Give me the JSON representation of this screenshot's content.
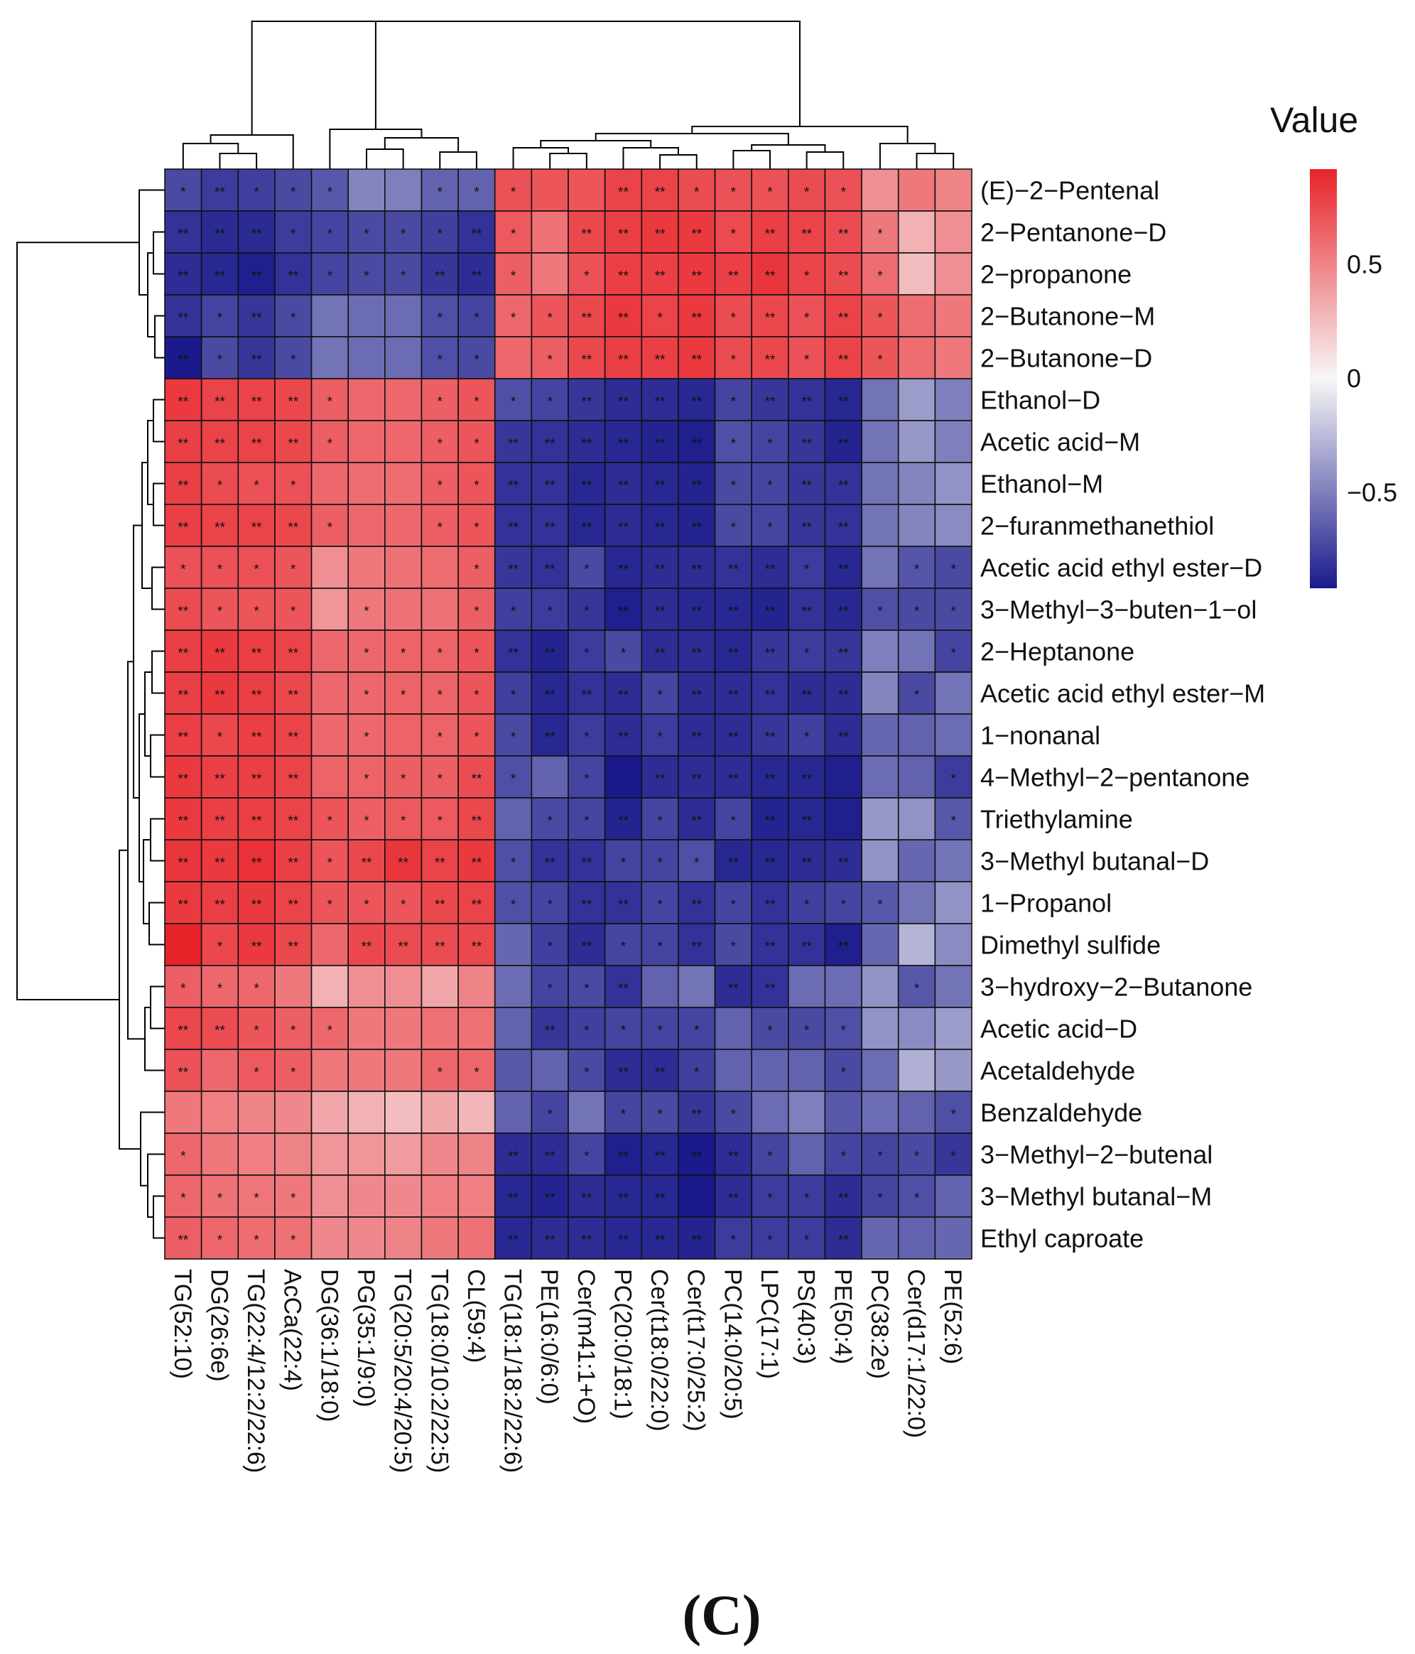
{
  "chart_data": {
    "type": "heatmap",
    "title": "",
    "panel_label": "(C)",
    "legend": {
      "title": "Value",
      "ticks": [
        {
          "label": "0.5",
          "value": 0.5
        },
        {
          "label": "0",
          "value": 0
        },
        {
          "label": "−0.5",
          "value": -0.5
        }
      ],
      "range": [
        -0.92,
        0.92
      ],
      "color_low": "#1a1a8c",
      "color_mid": "#f7f7f7",
      "color_high": "#e8232a"
    },
    "columns": [
      "TG(52:10)",
      "DG(26:6e)",
      "TG(22:4/12:2/22:6)",
      "AcCa(22:4)",
      "DG(36:1/18:0)",
      "PG(35:1/9:0)",
      "TG(20:5/20:4/20:5)",
      "TG(18:0/10:2/22:5)",
      "CL(59:4)",
      "TG(18:1/18:2/22:6)",
      "PE(16:0/6:0)",
      "Cer(m41:1+O)",
      "PC(20:0/18:1)",
      "Cer(t18:0/22:0)",
      "Cer(t17:0/25:2)",
      "PC(14:0/20:5)",
      "LPC(17:1)",
      "PS(40:3)",
      "PE(50:4)",
      "PC(38:2e)",
      "Cer(d17:1/22:0)",
      "PE(52:6)"
    ],
    "rows": [
      "(E)−2−Pentenal",
      "2−Pentanone−D",
      "2−propanone",
      "2−Butanone−M",
      "2−Butanone−D",
      "Ethanol−D",
      "Acetic acid−M",
      "Ethanol−M",
      "2−furanmethanethiol",
      "Acetic acid ethyl ester−D",
      "3−Methyl−3−buten−1−ol",
      "2−Heptanone",
      "Acetic acid ethyl ester−M",
      "1−nonanal",
      "4−Methyl−2−pentanone",
      "Triethylamine",
      "3−Methyl butanal−D",
      "1−Propanol",
      "Dimethyl sulfide",
      "3−hydroxy−2−Butanone",
      "Acetic acid−D",
      "Acetaldehyde",
      "Benzaldehyde",
      "3−Methyl−2−butenal",
      "3−Methyl butanal−M",
      "Ethyl caproate"
    ],
    "values": [
      [
        -0.72,
        -0.78,
        -0.76,
        -0.72,
        -0.66,
        -0.48,
        -0.5,
        -0.62,
        -0.62,
        0.72,
        0.7,
        0.7,
        0.78,
        0.78,
        0.74,
        0.72,
        0.72,
        0.74,
        0.72,
        0.45,
        0.55,
        0.5
      ],
      [
        -0.82,
        -0.85,
        -0.85,
        -0.78,
        -0.74,
        -0.72,
        -0.72,
        -0.76,
        -0.82,
        0.68,
        0.58,
        0.76,
        0.8,
        0.82,
        0.82,
        0.75,
        0.8,
        0.78,
        0.74,
        0.55,
        0.3,
        0.45
      ],
      [
        -0.84,
        -0.86,
        -0.9,
        -0.82,
        -0.74,
        -0.72,
        -0.72,
        -0.8,
        -0.84,
        0.66,
        0.55,
        0.72,
        0.8,
        0.8,
        0.82,
        0.8,
        0.84,
        0.78,
        0.74,
        0.6,
        0.25,
        0.45
      ],
      [
        -0.82,
        -0.74,
        -0.8,
        -0.72,
        -0.55,
        -0.58,
        -0.58,
        -0.7,
        -0.74,
        0.62,
        0.7,
        0.76,
        0.82,
        0.78,
        0.82,
        0.74,
        0.76,
        0.72,
        0.78,
        0.7,
        0.6,
        0.55
      ],
      [
        -0.92,
        -0.72,
        -0.8,
        -0.72,
        -0.55,
        -0.58,
        -0.58,
        -0.7,
        -0.72,
        0.62,
        0.66,
        0.76,
        0.8,
        0.8,
        0.82,
        0.74,
        0.76,
        0.72,
        0.78,
        0.7,
        0.6,
        0.55
      ],
      [
        0.82,
        0.78,
        0.78,
        0.76,
        0.66,
        0.62,
        0.62,
        0.66,
        0.7,
        -0.7,
        -0.74,
        -0.8,
        -0.84,
        -0.84,
        -0.86,
        -0.74,
        -0.8,
        -0.82,
        -0.86,
        -0.55,
        -0.38,
        -0.5
      ],
      [
        0.8,
        0.78,
        0.78,
        0.76,
        0.66,
        0.62,
        0.62,
        0.66,
        0.7,
        -0.8,
        -0.82,
        -0.84,
        -0.86,
        -0.88,
        -0.9,
        -0.7,
        -0.74,
        -0.8,
        -0.88,
        -0.55,
        -0.4,
        -0.5
      ],
      [
        0.8,
        0.74,
        0.72,
        0.72,
        0.62,
        0.6,
        0.6,
        0.66,
        0.7,
        -0.82,
        -0.82,
        -0.86,
        -0.84,
        -0.86,
        -0.88,
        -0.72,
        -0.74,
        -0.8,
        -0.82,
        -0.55,
        -0.48,
        -0.42
      ],
      [
        0.8,
        0.78,
        0.78,
        0.76,
        0.66,
        0.62,
        0.62,
        0.66,
        0.7,
        -0.82,
        -0.82,
        -0.86,
        -0.84,
        -0.86,
        -0.88,
        -0.72,
        -0.74,
        -0.8,
        -0.82,
        -0.55,
        -0.48,
        -0.45
      ],
      [
        0.72,
        0.72,
        0.72,
        0.7,
        0.45,
        0.55,
        0.58,
        0.6,
        0.66,
        -0.8,
        -0.82,
        -0.72,
        -0.86,
        -0.84,
        -0.84,
        -0.82,
        -0.84,
        -0.78,
        -0.86,
        -0.55,
        -0.68,
        -0.72
      ],
      [
        0.74,
        0.7,
        0.7,
        0.7,
        0.42,
        0.55,
        0.58,
        0.58,
        0.66,
        -0.76,
        -0.78,
        -0.8,
        -0.9,
        -0.84,
        -0.86,
        -0.86,
        -0.88,
        -0.82,
        -0.86,
        -0.7,
        -0.72,
        -0.72
      ],
      [
        0.8,
        0.82,
        0.8,
        0.78,
        0.62,
        0.62,
        0.64,
        0.64,
        0.7,
        -0.82,
        -0.88,
        -0.78,
        -0.72,
        -0.84,
        -0.84,
        -0.86,
        -0.8,
        -0.78,
        -0.8,
        -0.5,
        -0.55,
        -0.74
      ],
      [
        0.8,
        0.82,
        0.8,
        0.76,
        0.62,
        0.62,
        0.64,
        0.64,
        0.7,
        -0.76,
        -0.86,
        -0.82,
        -0.84,
        -0.74,
        -0.84,
        -0.84,
        -0.82,
        -0.84,
        -0.84,
        -0.48,
        -0.72,
        -0.55
      ],
      [
        0.8,
        0.76,
        0.8,
        0.78,
        0.62,
        0.62,
        0.64,
        0.64,
        0.7,
        -0.72,
        -0.86,
        -0.78,
        -0.84,
        -0.78,
        -0.84,
        -0.84,
        -0.8,
        -0.76,
        -0.84,
        -0.6,
        -0.62,
        -0.58
      ],
      [
        0.82,
        0.8,
        0.8,
        0.78,
        0.64,
        0.64,
        0.66,
        0.66,
        0.74,
        -0.7,
        -0.62,
        -0.74,
        -0.92,
        -0.84,
        -0.84,
        -0.84,
        -0.86,
        -0.86,
        -0.9,
        -0.58,
        -0.62,
        -0.78
      ],
      [
        0.82,
        0.8,
        0.8,
        0.78,
        0.7,
        0.66,
        0.68,
        0.68,
        0.76,
        -0.62,
        -0.72,
        -0.74,
        -0.88,
        -0.74,
        -0.84,
        -0.74,
        -0.88,
        -0.86,
        -0.9,
        -0.4,
        -0.42,
        -0.66
      ],
      [
        0.84,
        0.82,
        0.86,
        0.8,
        0.7,
        0.76,
        0.84,
        0.78,
        0.82,
        -0.7,
        -0.82,
        -0.82,
        -0.74,
        -0.74,
        -0.7,
        -0.86,
        -0.86,
        -0.84,
        -0.84,
        -0.42,
        -0.6,
        -0.55
      ],
      [
        0.82,
        0.8,
        0.82,
        0.78,
        0.7,
        0.7,
        0.7,
        0.76,
        0.78,
        -0.7,
        -0.74,
        -0.82,
        -0.82,
        -0.74,
        -0.82,
        -0.74,
        -0.82,
        -0.76,
        -0.74,
        -0.66,
        -0.55,
        -0.42
      ],
      [
        0.92,
        0.76,
        0.82,
        0.76,
        0.62,
        0.76,
        0.74,
        0.74,
        0.76,
        -0.6,
        -0.76,
        -0.84,
        -0.74,
        -0.74,
        -0.82,
        -0.72,
        -0.82,
        -0.82,
        -0.9,
        -0.6,
        -0.28,
        -0.45
      ],
      [
        0.66,
        0.62,
        0.62,
        0.55,
        0.3,
        0.45,
        0.45,
        0.35,
        0.5,
        -0.58,
        -0.74,
        -0.72,
        -0.82,
        -0.62,
        -0.55,
        -0.84,
        -0.82,
        -0.58,
        -0.58,
        -0.42,
        -0.66,
        -0.55
      ],
      [
        0.76,
        0.74,
        0.7,
        0.66,
        0.62,
        0.55,
        0.55,
        0.58,
        0.58,
        -0.62,
        -0.8,
        -0.76,
        -0.74,
        -0.74,
        -0.74,
        -0.62,
        -0.72,
        -0.72,
        -0.7,
        -0.42,
        -0.45,
        -0.38
      ],
      [
        0.72,
        0.62,
        0.68,
        0.66,
        0.55,
        0.55,
        0.55,
        0.62,
        0.62,
        -0.66,
        -0.62,
        -0.72,
        -0.84,
        -0.84,
        -0.76,
        -0.62,
        -0.62,
        -0.62,
        -0.72,
        -0.58,
        -0.3,
        -0.4
      ],
      [
        0.55,
        0.52,
        0.5,
        0.48,
        0.35,
        0.3,
        0.25,
        0.35,
        0.28,
        -0.62,
        -0.74,
        -0.55,
        -0.74,
        -0.72,
        -0.8,
        -0.72,
        -0.58,
        -0.5,
        -0.66,
        -0.58,
        -0.62,
        -0.7
      ],
      [
        0.62,
        0.55,
        0.52,
        0.5,
        0.42,
        0.42,
        0.4,
        0.48,
        0.5,
        -0.84,
        -0.84,
        -0.74,
        -0.9,
        -0.86,
        -0.92,
        -0.84,
        -0.74,
        -0.62,
        -0.74,
        -0.74,
        -0.72,
        -0.8
      ],
      [
        0.62,
        0.58,
        0.56,
        0.55,
        0.45,
        0.48,
        0.48,
        0.52,
        0.52,
        -0.86,
        -0.88,
        -0.84,
        -0.86,
        -0.86,
        -0.92,
        -0.84,
        -0.78,
        -0.78,
        -0.84,
        -0.74,
        -0.7,
        -0.62
      ],
      [
        0.66,
        0.62,
        0.6,
        0.58,
        0.48,
        0.48,
        0.5,
        0.55,
        0.58,
        -0.86,
        -0.84,
        -0.84,
        -0.86,
        -0.86,
        -0.88,
        -0.78,
        -0.78,
        -0.78,
        -0.84,
        -0.6,
        -0.62,
        -0.6
      ]
    ],
    "significance": [
      [
        "*",
        "**",
        "*",
        "*",
        "*",
        "",
        "",
        "*",
        "*",
        "*",
        "",
        "",
        "**",
        "**",
        "*",
        "*",
        "*",
        "*",
        "*",
        "",
        "",
        ""
      ],
      [
        "**",
        "**",
        "**",
        "*",
        "*",
        "*",
        "*",
        "*",
        "**",
        "*",
        "",
        "**",
        "**",
        "**",
        "**",
        "*",
        "**",
        "**",
        "**",
        "*",
        "",
        ""
      ],
      [
        "**",
        "**",
        "**",
        "**",
        "*",
        "*",
        "*",
        "**",
        "**",
        "*",
        "",
        "*",
        "**",
        "**",
        "**",
        "**",
        "**",
        "*",
        "**",
        "*",
        "",
        ""
      ],
      [
        "**",
        "*",
        "**",
        "*",
        "",
        "",
        "",
        "*",
        "*",
        "*",
        "*",
        "**",
        "**",
        "*",
        "**",
        "*",
        "**",
        "*",
        "**",
        "*",
        "",
        ""
      ],
      [
        "**",
        "*",
        "**",
        "*",
        "",
        "",
        "",
        "*",
        "*",
        "",
        "*",
        "**",
        "**",
        "**",
        "**",
        "*",
        "**",
        "*",
        "**",
        "*",
        "",
        ""
      ],
      [
        "**",
        "**",
        "**",
        "**",
        "*",
        "",
        "",
        "*",
        "*",
        "*",
        "*",
        "**",
        "**",
        "**",
        "**",
        "*",
        "**",
        "**",
        "**",
        "",
        "",
        ""
      ],
      [
        "**",
        "**",
        "**",
        "**",
        "*",
        "",
        "",
        "*",
        "*",
        "**",
        "**",
        "**",
        "**",
        "**",
        "**",
        "*",
        "*",
        "**",
        "**",
        "",
        "",
        ""
      ],
      [
        "**",
        "*",
        "*",
        "*",
        "",
        "",
        "",
        "*",
        "*",
        "**",
        "**",
        "**",
        "**",
        "**",
        "**",
        "*",
        "*",
        "**",
        "**",
        "",
        "",
        ""
      ],
      [
        "**",
        "**",
        "**",
        "**",
        "*",
        "",
        "",
        "*",
        "*",
        "**",
        "**",
        "**",
        "**",
        "**",
        "**",
        "*",
        "*",
        "**",
        "**",
        "",
        "",
        ""
      ],
      [
        "*",
        "*",
        "*",
        "*",
        "",
        "",
        "",
        "",
        "*",
        "**",
        "**",
        "*",
        "**",
        "**",
        "**",
        "**",
        "**",
        "*",
        "**",
        "",
        "*",
        "*"
      ],
      [
        "**",
        "*",
        "*",
        "*",
        "",
        "*",
        "",
        "",
        "*",
        "*",
        "*",
        "*",
        "**",
        "**",
        "**",
        "**",
        "**",
        "**",
        "**",
        "*",
        "*",
        "*"
      ],
      [
        "**",
        "**",
        "**",
        "**",
        "",
        "*",
        "*",
        "*",
        "*",
        "**",
        "**",
        "*",
        "*",
        "**",
        "**",
        "**",
        "**",
        "*",
        "**",
        "",
        "",
        "*"
      ],
      [
        "**",
        "**",
        "**",
        "**",
        "",
        "*",
        "*",
        "*",
        "*",
        "*",
        "**",
        "**",
        "**",
        "*",
        "**",
        "**",
        "**",
        "**",
        "**",
        "",
        "*",
        ""
      ],
      [
        "**",
        "*",
        "**",
        "**",
        "",
        "*",
        "",
        "*",
        "*",
        "*",
        "**",
        "*",
        "**",
        "*",
        "**",
        "**",
        "**",
        "*",
        "**",
        "",
        "",
        ""
      ],
      [
        "**",
        "**",
        "**",
        "**",
        "",
        "*",
        "*",
        "*",
        "**",
        "*",
        "",
        "*",
        "",
        "**",
        "**",
        "**",
        "**",
        "**",
        "",
        "",
        "",
        "*"
      ],
      [
        "**",
        "**",
        "**",
        "**",
        "*",
        "*",
        "*",
        "*",
        "**",
        "",
        "*",
        "*",
        "**",
        "*",
        "**",
        "*",
        "**",
        "**",
        "",
        "",
        "",
        "*"
      ],
      [
        "**",
        "**",
        "**",
        "**",
        "*",
        "**",
        "**",
        "**",
        "**",
        "*",
        "**",
        "**",
        "*",
        "*",
        "*",
        "**",
        "**",
        "**",
        "**",
        "",
        "",
        ""
      ],
      [
        "**",
        "**",
        "**",
        "**",
        "*",
        "*",
        "*",
        "**",
        "**",
        "*",
        "*",
        "**",
        "**",
        "*",
        "**",
        "*",
        "**",
        "*",
        "*",
        "*",
        "",
        ""
      ],
      [
        "",
        "*",
        "**",
        "**",
        "",
        "**",
        "**",
        "**",
        "**",
        "",
        "*",
        "**",
        "*",
        "*",
        "**",
        "*",
        "**",
        "**",
        "**",
        "",
        "",
        ""
      ],
      [
        "*",
        "*",
        "*",
        "",
        "",
        "",
        "",
        "",
        "",
        "",
        "*",
        "*",
        "**",
        "",
        "",
        "**",
        "**",
        "",
        "",
        "",
        "*",
        ""
      ],
      [
        "**",
        "**",
        "*",
        "*",
        "*",
        "",
        "",
        "",
        "",
        "",
        "**",
        "*",
        "*",
        "*",
        "*",
        "",
        "*",
        "*",
        "*",
        "",
        "",
        ""
      ],
      [
        "**",
        "",
        "*",
        "*",
        "",
        "",
        "",
        "*",
        "*",
        "",
        "",
        "*",
        "**",
        "**",
        "*",
        "",
        "",
        "",
        "*",
        "",
        "",
        ""
      ],
      [
        "",
        "",
        "",
        "",
        "",
        "",
        "",
        "",
        "",
        "",
        "*",
        "",
        "*",
        "*",
        "**",
        "*",
        "",
        "",
        "",
        "",
        "",
        "*"
      ],
      [
        "*",
        "",
        "",
        "",
        "",
        "",
        "",
        "",
        "",
        "**",
        "**",
        "*",
        "**",
        "**",
        "**",
        "**",
        "*",
        "",
        "*",
        "*",
        "*",
        "*"
      ],
      [
        "*",
        "*",
        "*",
        "*",
        "",
        "",
        "",
        "",
        "",
        "**",
        "**",
        "**",
        "**",
        "**",
        "",
        "**",
        "*",
        "*",
        "**",
        "*",
        "*",
        ""
      ],
      [
        "**",
        "*",
        "*",
        "*",
        "",
        "",
        "",
        "",
        "",
        "**",
        "**",
        "**",
        "**",
        "**",
        "**",
        "*",
        "*",
        "*",
        "**",
        "",
        "",
        ""
      ]
    ]
  }
}
